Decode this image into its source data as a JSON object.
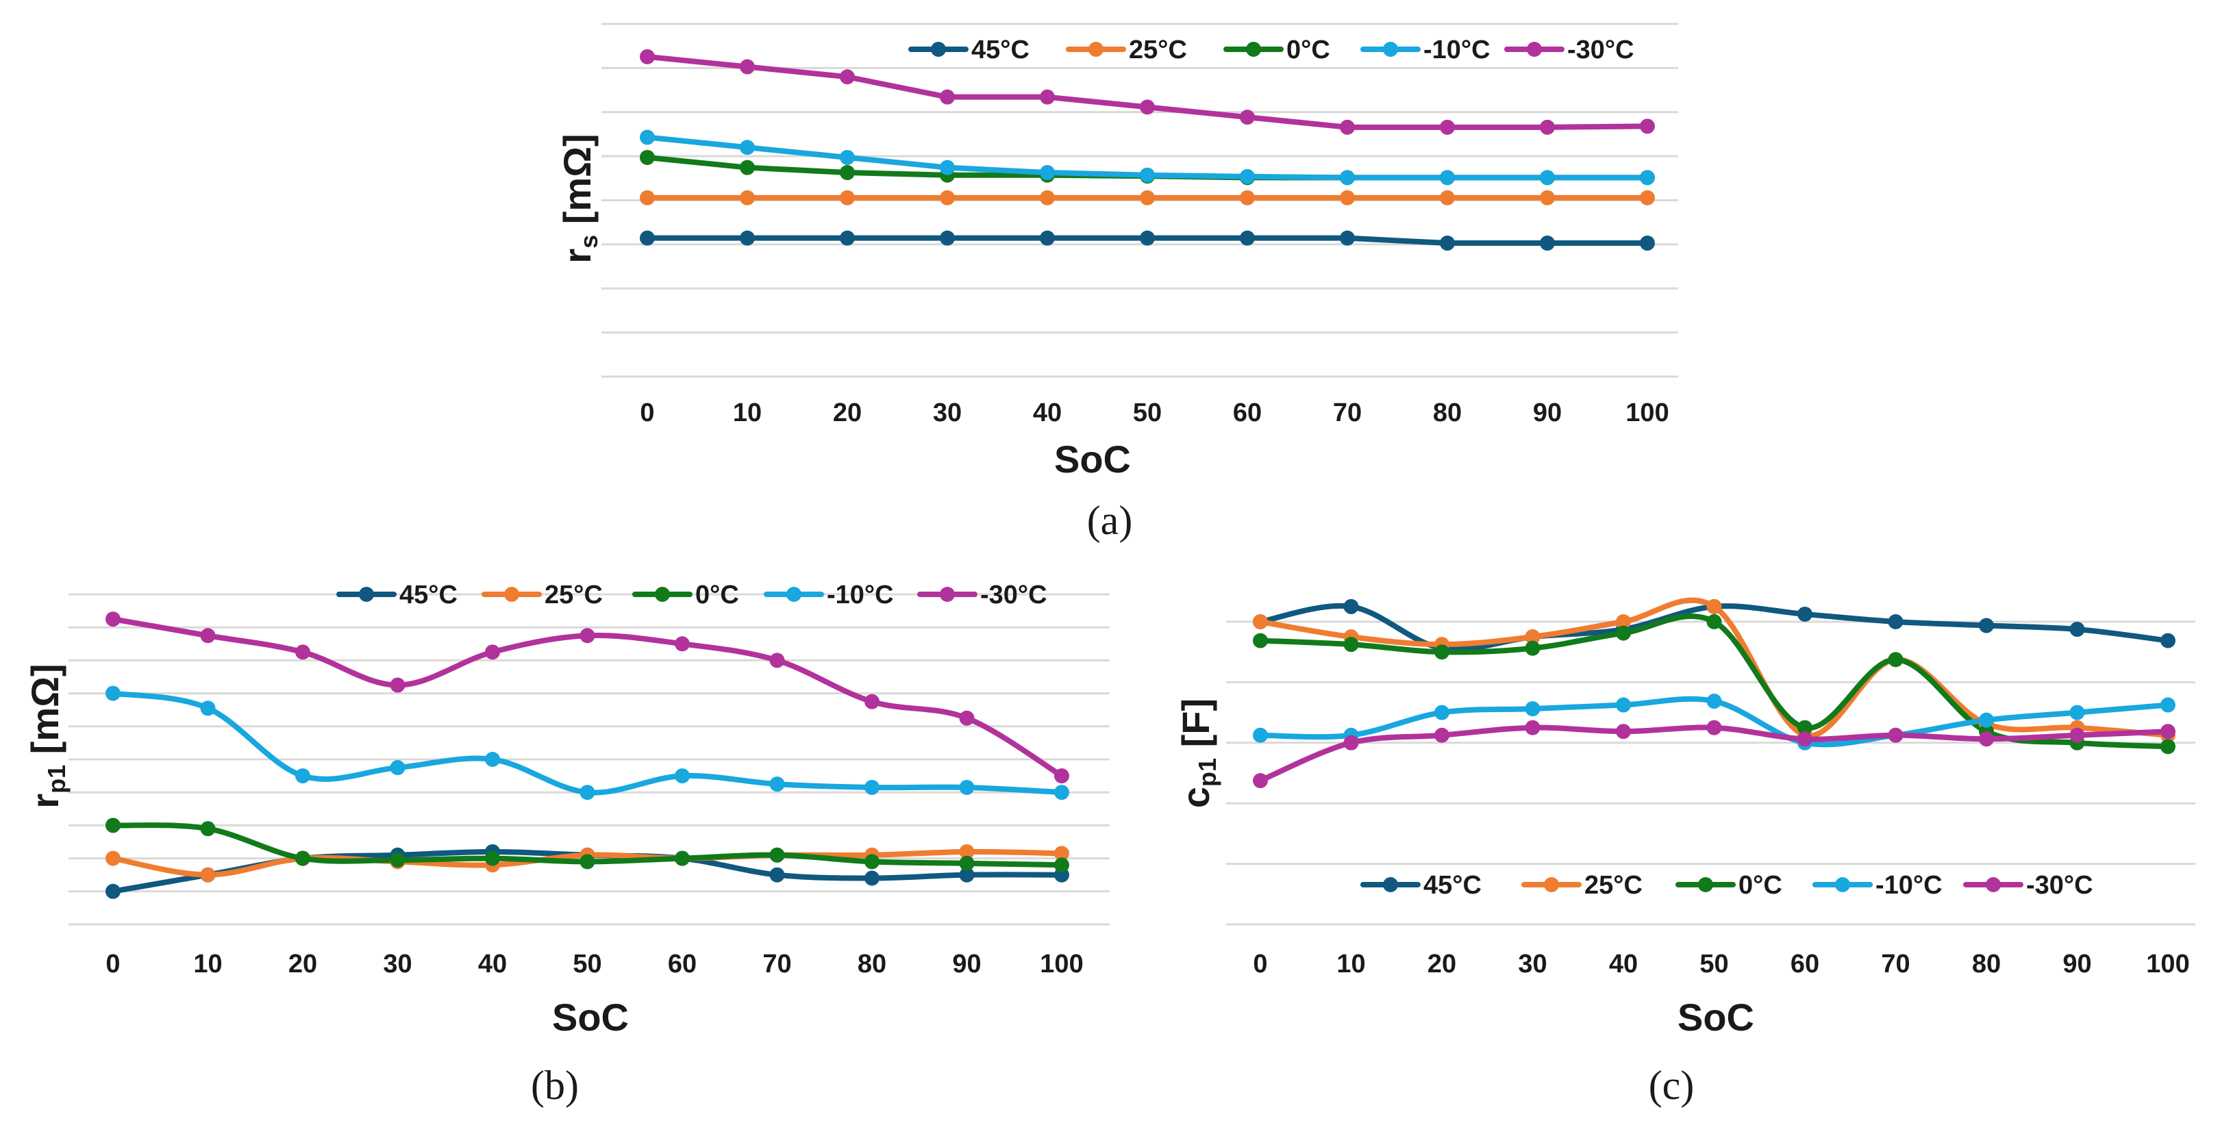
{
  "chart_data": [
    {
      "type": "line",
      "panel_caption": "(a)",
      "xlabel": "SoC",
      "ylabel": "r",
      "ylabel_sub": "s",
      "ylabel_unit": "[mΩ]",
      "categories": [
        "0",
        "10",
        "20",
        "30",
        "40",
        "50",
        "60",
        "70",
        "80",
        "90",
        "100"
      ],
      "ylim": [
        0,
        7
      ],
      "grid": true,
      "show_y_ticks": false,
      "legend_position": "top-right",
      "smooth": false,
      "series": [
        {
          "name": "45°C",
          "color": "#10587f",
          "values": [
            2.75,
            2.75,
            2.75,
            2.75,
            2.75,
            2.75,
            2.75,
            2.75,
            2.65,
            2.65,
            2.65
          ]
        },
        {
          "name": "25°C",
          "color": "#f07c30",
          "values": [
            3.55,
            3.55,
            3.55,
            3.55,
            3.55,
            3.55,
            3.55,
            3.55,
            3.55,
            3.55,
            3.55
          ]
        },
        {
          "name": "0°C",
          "color": "#117a1a",
          "values": [
            4.35,
            4.15,
            4.05,
            4.0,
            4.0,
            3.98,
            3.95,
            3.95,
            3.95,
            3.95,
            3.95
          ]
        },
        {
          "name": "-10°C",
          "color": "#18a7de",
          "values": [
            4.75,
            4.55,
            4.35,
            4.15,
            4.05,
            4.0,
            3.97,
            3.95,
            3.95,
            3.95,
            3.95
          ]
        },
        {
          "name": "-30°C",
          "color": "#b2329c",
          "values": [
            6.35,
            6.15,
            5.95,
            5.55,
            5.55,
            5.35,
            5.15,
            4.95,
            4.95,
            4.95,
            4.97
          ]
        }
      ]
    },
    {
      "type": "line",
      "panel_caption": "(b)",
      "xlabel": "SoC",
      "ylabel": "r",
      "ylabel_sub": "p1",
      "ylabel_unit": "[mΩ]",
      "categories": [
        "0",
        "10",
        "20",
        "30",
        "40",
        "50",
        "60",
        "70",
        "80",
        "90",
        "100"
      ],
      "ylim": [
        0,
        10
      ],
      "grid": true,
      "show_y_ticks": false,
      "legend_position": "top-right",
      "smooth": true,
      "series": [
        {
          "name": "45°C",
          "color": "#10587f",
          "values": [
            1.0,
            1.5,
            2.0,
            2.1,
            2.2,
            2.1,
            2.0,
            1.5,
            1.4,
            1.5,
            1.5
          ]
        },
        {
          "name": "25°C",
          "color": "#f07c30",
          "values": [
            2.0,
            1.5,
            2.0,
            1.9,
            1.8,
            2.1,
            2.0,
            2.1,
            2.1,
            2.2,
            2.15
          ]
        },
        {
          "name": "0°C",
          "color": "#117a1a",
          "values": [
            3.0,
            2.9,
            2.0,
            1.95,
            2.0,
            1.9,
            2.0,
            2.1,
            1.9,
            1.85,
            1.8
          ]
        },
        {
          "name": "-10°C",
          "color": "#18a7de",
          "values": [
            7.0,
            6.55,
            4.5,
            4.75,
            5.0,
            4.0,
            4.5,
            4.25,
            4.15,
            4.15,
            4.0
          ]
        },
        {
          "name": "-30°C",
          "color": "#b2329c",
          "values": [
            9.25,
            8.75,
            8.25,
            7.25,
            8.25,
            8.75,
            8.5,
            8.0,
            6.75,
            6.25,
            4.5
          ]
        }
      ]
    },
    {
      "type": "line",
      "panel_caption": "(c)",
      "xlabel": "SoC",
      "ylabel": "c",
      "ylabel_sub": "p1",
      "ylabel_unit": "[F]",
      "categories": [
        "0",
        "10",
        "20",
        "30",
        "40",
        "50",
        "60",
        "70",
        "80",
        "90",
        "100"
      ],
      "ylim": [
        0,
        8
      ],
      "grid": true,
      "show_y_ticks": false,
      "legend_position": "bottom-right",
      "smooth": true,
      "series": [
        {
          "name": "45°C",
          "color": "#10587f",
          "values": [
            8.0,
            8.4,
            7.3,
            7.6,
            7.8,
            8.4,
            8.2,
            8.0,
            7.9,
            7.8,
            7.5
          ]
        },
        {
          "name": "25°C",
          "color": "#f07c30",
          "values": [
            8.0,
            7.6,
            7.4,
            7.6,
            8.0,
            8.4,
            5.0,
            7.0,
            5.3,
            5.2,
            5.0
          ]
        },
        {
          "name": "0°C",
          "color": "#117a1a",
          "values": [
            7.5,
            7.4,
            7.2,
            7.3,
            7.7,
            8.0,
            5.2,
            7.0,
            5.1,
            4.8,
            4.7
          ]
        },
        {
          "name": "-10°C",
          "color": "#18a7de",
          "values": [
            5.0,
            5.0,
            5.6,
            5.7,
            5.8,
            5.9,
            4.8,
            5.0,
            5.4,
            5.6,
            5.8
          ]
        },
        {
          "name": "-30°C",
          "color": "#b2329c",
          "values": [
            3.8,
            4.8,
            5.0,
            5.2,
            5.1,
            5.2,
            4.9,
            5.0,
            4.9,
            5.0,
            5.1
          ]
        }
      ]
    }
  ]
}
